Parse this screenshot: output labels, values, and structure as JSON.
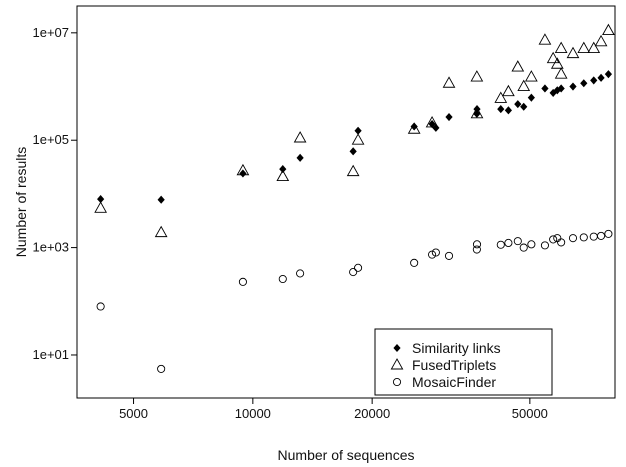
{
  "chart_data": {
    "type": "scatter",
    "title": "",
    "xlabel": "Number of sequences",
    "ylabel": "Number of results",
    "xscale": "log",
    "yscale": "log",
    "xlim": [
      3600,
      82000
    ],
    "ylim": [
      1.58,
      31600000
    ],
    "x_ticks": [
      {
        "value": 5000,
        "label": "5000"
      },
      {
        "value": 10000,
        "label": "10000"
      },
      {
        "value": 20000,
        "label": "20000"
      },
      {
        "value": 50000,
        "label": "50000"
      }
    ],
    "y_ticks": [
      {
        "value": 10,
        "label": "1e+01"
      },
      {
        "value": 1000,
        "label": "1e+03"
      },
      {
        "value": 100000,
        "label": "1e+05"
      },
      {
        "value": 10000000,
        "label": "1e+07"
      }
    ],
    "grid": false,
    "legend_position": "bottom-right",
    "series": [
      {
        "name": "Similarity links",
        "marker": "diamond-filled",
        "points": [
          [
            4130,
            8000
          ],
          [
            5870,
            7800
          ],
          [
            9440,
            24000
          ],
          [
            11900,
            29000
          ],
          [
            13160,
            47000
          ],
          [
            17910,
            62000
          ],
          [
            18430,
            150000
          ],
          [
            25530,
            180000
          ],
          [
            28330,
            200000
          ],
          [
            28960,
            170000
          ],
          [
            31260,
            270000
          ],
          [
            36750,
            310000
          ],
          [
            36780,
            380000
          ],
          [
            42230,
            380000
          ],
          [
            44140,
            360000
          ],
          [
            46620,
            470000
          ],
          [
            48250,
            420000
          ],
          [
            50440,
            620000
          ],
          [
            54580,
            920000
          ],
          [
            57250,
            760000
          ],
          [
            58640,
            850000
          ],
          [
            59970,
            920000
          ],
          [
            64240,
            1000000
          ],
          [
            68400,
            1150000
          ],
          [
            72470,
            1300000
          ],
          [
            75620,
            1450000
          ],
          [
            78920,
            1700000
          ]
        ]
      },
      {
        "name": "FusedTriplets",
        "marker": "triangle-open",
        "points": [
          [
            4130,
            5400
          ],
          [
            5870,
            1900
          ],
          [
            9440,
            27000
          ],
          [
            11900,
            21000
          ],
          [
            13160,
            110000
          ],
          [
            17910,
            26000
          ],
          [
            18430,
            100000
          ],
          [
            25530,
            160000
          ],
          [
            28330,
            210000
          ],
          [
            31260,
            1150000
          ],
          [
            36750,
            1500000
          ],
          [
            36780,
            310000
          ],
          [
            42230,
            600000
          ],
          [
            44140,
            800000
          ],
          [
            46620,
            2300000
          ],
          [
            48250,
            1000000
          ],
          [
            50440,
            1500000
          ],
          [
            54580,
            7300000
          ],
          [
            57250,
            3300000
          ],
          [
            58640,
            2600000
          ],
          [
            59970,
            5100000
          ],
          [
            59970,
            1700000
          ],
          [
            64240,
            4100000
          ],
          [
            68400,
            5100000
          ],
          [
            72470,
            5100000
          ],
          [
            75620,
            6800000
          ],
          [
            78920,
            11000000
          ]
        ]
      },
      {
        "name": "MosaicFinder",
        "marker": "circle-open",
        "points": [
          [
            4130,
            80
          ],
          [
            5870,
            5.5
          ],
          [
            9440,
            230
          ],
          [
            11900,
            260
          ],
          [
            13160,
            330
          ],
          [
            17910,
            350
          ],
          [
            18430,
            420
          ],
          [
            25530,
            520
          ],
          [
            28330,
            740
          ],
          [
            28960,
            810
          ],
          [
            31260,
            700
          ],
          [
            36750,
            920
          ],
          [
            36780,
            1150
          ],
          [
            42230,
            1130
          ],
          [
            44140,
            1220
          ],
          [
            46620,
            1320
          ],
          [
            48250,
            1000
          ],
          [
            50440,
            1150
          ],
          [
            54580,
            1100
          ],
          [
            57250,
            1420
          ],
          [
            58640,
            1500
          ],
          [
            59970,
            1250
          ],
          [
            64240,
            1500
          ],
          [
            68400,
            1550
          ],
          [
            72470,
            1600
          ],
          [
            75620,
            1650
          ],
          [
            78920,
            1800
          ]
        ]
      }
    ]
  }
}
